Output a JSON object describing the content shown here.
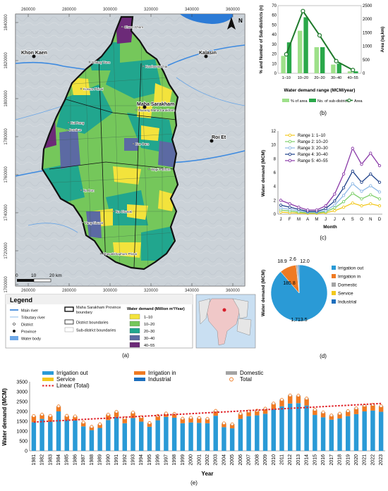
{
  "map_panel": {
    "caption": "(a)",
    "top_ticks": [
      "260000",
      "280000",
      "300000",
      "320000",
      "340000",
      "360000"
    ],
    "bottom_ticks": [
      "260000",
      "280000",
      "300000",
      "320000",
      "340000",
      "360000"
    ],
    "left_ticks": [
      "1840000",
      "1820000",
      "1800000",
      "1780000",
      "1760000",
      "1740000",
      "1720000",
      "1700000"
    ],
    "place_names": [
      "Khon Kaen",
      "Kalasin",
      "Maha Sarakham",
      "Roi Et",
      "Chiang Yuen",
      "Kantharawichai",
      "Kosum Phisai",
      "Mueang Maha Sarakham",
      "Borabue",
      "Kae Dam",
      "Wapi Pathum",
      "Na Dun",
      "Na Chueak",
      "Yang Sisurat",
      "Phayakkhaphum Phisai",
      "Kut Rang",
      "Chuen Chom"
    ],
    "scale": {
      "labels": [
        "0",
        "10",
        "20 km"
      ]
    },
    "north_label": "N",
    "colors": {
      "c1": "#f3e33c",
      "c2": "#75c75b",
      "c3": "#21a68e",
      "c4": "#5c6aa3",
      "c5": "#6c2a78",
      "water": "#2c7bd6"
    }
  },
  "legend": {
    "title": "Legend",
    "main_river": "Main river",
    "tributary_river": "Tributary river",
    "district": "District",
    "province": "Province",
    "water_body": "Water body",
    "province_boundary": "Maha Sarakham Province boundary",
    "district_boundaries": "District boundaries",
    "subdistrict_boundaries": "Sub-district boundaries",
    "demand_title": "Water demand (Million m³/Year)",
    "ranges": [
      "1–10",
      "10–20",
      "20–30",
      "30–40",
      "40–55"
    ]
  },
  "chart_data": [
    {
      "id": "b",
      "type": "bar",
      "caption": "(b)",
      "categories": [
        "1–10",
        "10–20",
        "20–30",
        "30–40",
        "40–55"
      ],
      "series": [
        {
          "name": "% of area",
          "values": [
            18,
            44,
            27,
            9,
            2
          ],
          "color": "#9ee08a"
        },
        {
          "name": "No. of sub-districts",
          "values": [
            32,
            58,
            27,
            10,
            2
          ],
          "color": "#2aa84a"
        },
        {
          "name": "Area",
          "axis": "right",
          "values": [
            700,
            2300,
            1400,
            450,
            120
          ],
          "color": "#1f7a2c"
        }
      ],
      "xlabel": "Water demand range (MCM/year)",
      "ylabel": "% and Number of Sub-districts (n)",
      "ylabel_right": "Area (sq.km)",
      "ylim": [
        0,
        70
      ],
      "y_ticks": [
        "0",
        "10",
        "20",
        "30",
        "40",
        "50",
        "60",
        "70"
      ],
      "ylim_right": [
        0,
        2500
      ],
      "y_ticks_right": [
        "0",
        "500",
        "1000",
        "1500",
        "2000",
        "2500"
      ],
      "legend": [
        "% of area",
        "No. of sub-districts",
        "Area"
      ]
    },
    {
      "id": "c",
      "type": "line",
      "caption": "(c)",
      "categories": [
        "J",
        "F",
        "M",
        "A",
        "M",
        "J",
        "J",
        "A",
        "S",
        "O",
        "N",
        "D"
      ],
      "series": [
        {
          "name": "Range 1: 1–10",
          "values": [
            0.3,
            0.2,
            0.15,
            0.1,
            0.1,
            0.2,
            0.5,
            1.0,
            1.6,
            1.2,
            1.5,
            1.2
          ],
          "color": "#f2c81d"
        },
        {
          "name": "Range 2: 10–20",
          "values": [
            0.6,
            0.45,
            0.3,
            0.2,
            0.2,
            0.35,
            0.9,
            1.8,
            3.0,
            2.2,
            2.8,
            2.2
          ],
          "color": "#7ecf6a"
        },
        {
          "name": "Range 3: 20–30",
          "values": [
            0.9,
            0.7,
            0.5,
            0.3,
            0.3,
            0.5,
            1.3,
            2.7,
            4.4,
            3.3,
            4.1,
            3.2
          ],
          "color": "#8fb9e6"
        },
        {
          "name": "Range 4: 30–40",
          "values": [
            1.3,
            1.0,
            0.7,
            0.4,
            0.4,
            0.8,
            1.9,
            3.8,
            6.2,
            4.6,
            5.8,
            4.6
          ],
          "color": "#1c3f88"
        },
        {
          "name": "Range 5: 40–55",
          "values": [
            2.0,
            1.5,
            1.0,
            0.6,
            0.6,
            1.2,
            2.9,
            5.8,
            9.5,
            7.2,
            8.8,
            7.0
          ],
          "color": "#8a3aa8"
        }
      ],
      "xlabel": "Month",
      "ylabel": "Water demand (MCM)",
      "ylim": [
        0,
        12
      ],
      "y_ticks": [
        "0",
        "2",
        "4",
        "6",
        "8",
        "10",
        "12"
      ]
    },
    {
      "id": "d",
      "type": "pie",
      "caption": "(d)",
      "ylabel": "Water demand (MCM)",
      "slices": [
        {
          "name": "Irrigation out",
          "value": 1713.5,
          "label": "1,713.5",
          "color": "#2a9ad6"
        },
        {
          "name": "Irrigation in",
          "value": 185.8,
          "label": "185.8",
          "color": "#ef7a22"
        },
        {
          "name": "Domestic",
          "value": 18.9,
          "label": "18.9",
          "color": "#a3a3a3"
        },
        {
          "name": "Service",
          "value": 2.6,
          "label": "2.6",
          "color": "#f2c81d"
        },
        {
          "name": "Industrial",
          "value": 12.0,
          "label": "12.0",
          "color": "#1d6fbd"
        }
      ]
    },
    {
      "id": "e",
      "type": "bar",
      "caption": "(e)",
      "categories": [
        "1981",
        "1982",
        "1983",
        "1984",
        "1985",
        "1986",
        "1987",
        "1988",
        "1989",
        "1990",
        "1991",
        "1992",
        "1993",
        "1994",
        "1995",
        "1996",
        "1997",
        "1998",
        "1999",
        "2000",
        "2001",
        "2002",
        "2003",
        "2004",
        "2005",
        "2006",
        "2007",
        "2008",
        "2009",
        "2010",
        "2011",
        "2012",
        "2013",
        "2014",
        "2015",
        "2016",
        "2017",
        "2018",
        "2019",
        "2020",
        "2021",
        "2022",
        "2023"
      ],
      "series": [
        {
          "name": "Irrigation out",
          "values": [
            1450,
            1620,
            1480,
            2000,
            1560,
            1540,
            1240,
            1050,
            1160,
            1560,
            1720,
            1400,
            1660,
            1480,
            1220,
            1550,
            1720,
            1680,
            1400,
            1440,
            1420,
            1400,
            1780,
            1200,
            1140,
            1620,
            1760,
            1800,
            1880,
            2120,
            2260,
            2400,
            2420,
            2300,
            1820,
            1700,
            1580,
            1640,
            1760,
            1860,
            2000,
            2040,
            1980
          ],
          "color": "#2a9ad6"
        },
        {
          "name": "Irrigation in",
          "values": [
            300,
            200,
            280,
            240,
            200,
            190,
            180,
            150,
            170,
            260,
            240,
            230,
            260,
            210,
            170,
            200,
            150,
            170,
            210,
            210,
            220,
            200,
            220,
            170,
            180,
            230,
            210,
            210,
            230,
            250,
            300,
            380,
            350,
            320,
            230,
            220,
            180,
            210,
            220,
            260,
            260,
            260,
            250
          ],
          "color": "#ef7a22"
        },
        {
          "name": "Domestic",
          "values": [
            12,
            12,
            12,
            12,
            13,
            13,
            13,
            14,
            14,
            14,
            15,
            15,
            15,
            15,
            16,
            16,
            16,
            17,
            17,
            17,
            17,
            18,
            18,
            18,
            18,
            19,
            19,
            19,
            19,
            20,
            20,
            20,
            20,
            21,
            21,
            21,
            21,
            22,
            22,
            22,
            22,
            23,
            23
          ],
          "color": "#a3a3a3"
        },
        {
          "name": "Service",
          "values": [
            2,
            2,
            2,
            2,
            2,
            2,
            2,
            2,
            2,
            2,
            2,
            2,
            2,
            2,
            2,
            2,
            3,
            3,
            3,
            3,
            3,
            3,
            3,
            3,
            3,
            3,
            3,
            3,
            3,
            3,
            3,
            3,
            3,
            3,
            3,
            3,
            3,
            3,
            3,
            3,
            3,
            3,
            3
          ],
          "color": "#f2c81d"
        },
        {
          "name": "Industrial",
          "values": [
            8,
            8,
            8,
            8,
            8,
            9,
            9,
            9,
            9,
            9,
            10,
            10,
            10,
            10,
            10,
            11,
            11,
            11,
            11,
            12,
            12,
            12,
            12,
            12,
            13,
            13,
            13,
            13,
            13,
            14,
            14,
            14,
            14,
            14,
            15,
            15,
            15,
            15,
            15,
            16,
            16,
            16,
            16
          ],
          "color": "#1d6fbd"
        }
      ],
      "totals_label": "Total",
      "trend": {
        "name": "Linear (Total)",
        "start": 1460,
        "end": 2400,
        "color": "#e0242a"
      },
      "xlabel": "Year",
      "ylabel": "Water demand (MCM)",
      "ylim": [
        0,
        3500
      ],
      "y_ticks": [
        "0",
        "500",
        "1000",
        "1500",
        "2000",
        "2500",
        "3000",
        "3500"
      ]
    }
  ]
}
